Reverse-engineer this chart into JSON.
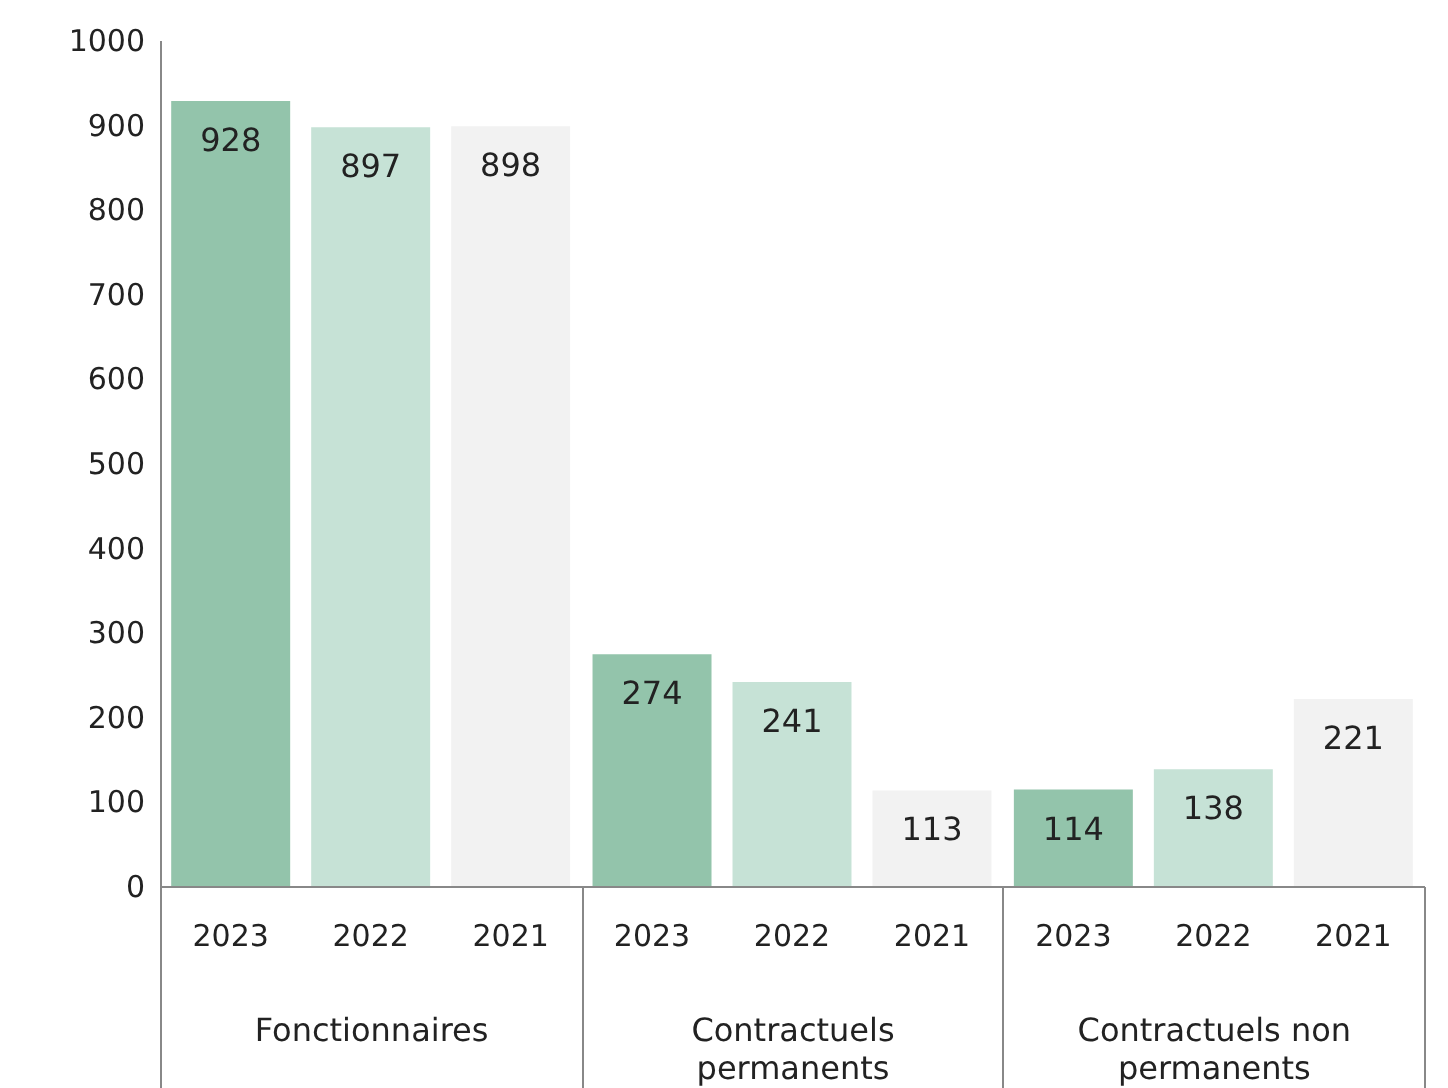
{
  "chart_data": {
    "type": "bar",
    "categories": [
      "Fonctionnaires",
      "Contractuels permanents",
      "Contractuels non permanents"
    ],
    "series": [
      {
        "name": "2023",
        "color": "#93c4ab",
        "values": [
          928,
          274,
          114
        ]
      },
      {
        "name": "2022",
        "color": "#c6e2d6",
        "values": [
          897,
          241,
          138
        ]
      },
      {
        "name": "2021",
        "color": "#f2f2f2",
        "values": [
          898,
          113,
          221
        ]
      }
    ],
    "ylim": [
      0,
      1000
    ],
    "yticks": [
      0,
      100,
      200,
      300,
      400,
      500,
      600,
      700,
      800,
      900,
      1000
    ],
    "data_labels": true,
    "legend": false,
    "grid": false
  }
}
